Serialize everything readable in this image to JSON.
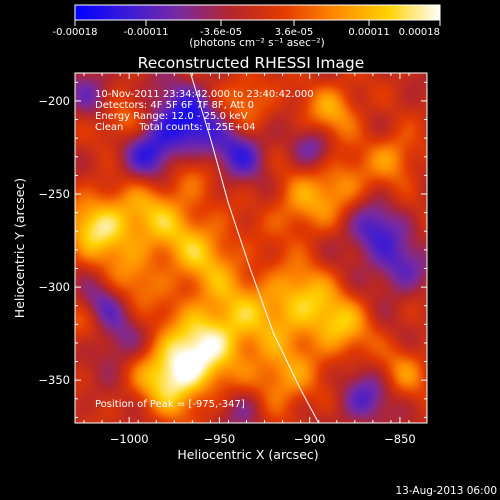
{
  "colorbar": {
    "ticks": [
      {
        "value": -0.00018,
        "label": "-0.00018"
      },
      {
        "value": -0.00011,
        "label": "-0.00011"
      },
      {
        "value": -3.6e-05,
        "label": "-3.6e-05"
      },
      {
        "value": 3.6e-05,
        "label": "3.6e-05"
      },
      {
        "value": 0.00011,
        "label": "0.00011"
      },
      {
        "value": 0.00018,
        "label": "0.00018"
      }
    ],
    "range": [
      -0.00018,
      0.00018
    ],
    "unit_label": "(photons cm⁻² s⁻¹ asec⁻²)",
    "colors": [
      "#0000ff",
      "#3a1ad8",
      "#7a2aa0",
      "#b5262a",
      "#e33a00",
      "#ff8a00",
      "#ffd200",
      "#ffffff"
    ]
  },
  "chart_data": {
    "type": "heatmap",
    "title": "Reconstructed RHESSI Image",
    "xlabel": "Heliocentric X (arcsec)",
    "ylabel": "Heliocentric Y (arcsec)",
    "xlim": [
      -1030,
      -835
    ],
    "ylim": [
      -373,
      -185
    ],
    "x_ticks": [
      -1000,
      -950,
      -900,
      -850
    ],
    "y_ticks": [
      -200,
      -250,
      -300,
      -350
    ],
    "x_tick_labels": [
      "−1000",
      "−950",
      "−900",
      "−850"
    ],
    "y_tick_labels": [
      "−200",
      "−250",
      "−300",
      "−350"
    ],
    "info_lines": [
      "10-Nov-2011 23:34:42.000 to 23:40:42.000",
      "Detectors: 4F 5F 6F 7F 8F, Att 0",
      "Energy Range: 12.0 - 25.0 keV",
      "Clean     Total counts: 1.25E+04"
    ],
    "peak_label": "Position of Peak = [-975,-347]",
    "peak": [
      -975,
      -347
    ],
    "limb_curve": [
      [
        -966,
        -185
      ],
      [
        -955,
        -220
      ],
      [
        -945,
        -255
      ],
      [
        -933,
        -290
      ],
      [
        -920,
        -325
      ],
      [
        -905,
        -355
      ],
      [
        -895,
        -373
      ]
    ],
    "hot_blobs": [
      {
        "x": -975,
        "y": -347,
        "amp": 1.0,
        "r": 14
      },
      {
        "x": -1018,
        "y": -268,
        "amp": 0.75,
        "r": 13
      },
      {
        "x": -988,
        "y": -262,
        "amp": 0.6,
        "r": 16
      },
      {
        "x": -960,
        "y": -282,
        "amp": 0.55,
        "r": 15
      },
      {
        "x": -940,
        "y": -318,
        "amp": 0.55,
        "r": 18
      },
      {
        "x": -958,
        "y": -330,
        "amp": 0.5,
        "r": 14
      },
      {
        "x": -905,
        "y": -307,
        "amp": 0.65,
        "r": 14
      },
      {
        "x": -883,
        "y": -322,
        "amp": 0.6,
        "r": 12
      },
      {
        "x": -915,
        "y": -350,
        "amp": 0.55,
        "r": 13
      },
      {
        "x": -887,
        "y": -205,
        "amp": 0.55,
        "r": 11
      },
      {
        "x": -1003,
        "y": -212,
        "amp": 0.5,
        "r": 9
      },
      {
        "x": -905,
        "y": -257,
        "amp": 0.5,
        "r": 12
      },
      {
        "x": -882,
        "y": -245,
        "amp": 0.5,
        "r": 11
      },
      {
        "x": -853,
        "y": -230,
        "amp": 0.5,
        "r": 10
      },
      {
        "x": -935,
        "y": -200,
        "amp": 0.45,
        "r": 11
      },
      {
        "x": -847,
        "y": -345,
        "amp": 0.4,
        "r": 10
      },
      {
        "x": -1025,
        "y": -320,
        "amp": 0.35,
        "r": 10
      },
      {
        "x": -1000,
        "y": -300,
        "amp": 0.4,
        "r": 12
      },
      {
        "x": -968,
        "y": -238,
        "amp": 0.35,
        "r": 10
      }
    ],
    "cold_blobs": [
      {
        "x": -968,
        "y": -212,
        "amp": -0.8,
        "r": 14
      },
      {
        "x": -990,
        "y": -230,
        "amp": -0.6,
        "r": 12
      },
      {
        "x": -938,
        "y": -228,
        "amp": -0.55,
        "r": 10
      },
      {
        "x": -1015,
        "y": -310,
        "amp": -0.6,
        "r": 10
      },
      {
        "x": -1005,
        "y": -330,
        "amp": -0.4,
        "r": 10
      },
      {
        "x": -865,
        "y": -270,
        "amp": -0.6,
        "r": 11
      },
      {
        "x": -850,
        "y": -290,
        "amp": -0.5,
        "r": 10
      },
      {
        "x": -870,
        "y": -360,
        "amp": -0.5,
        "r": 10
      },
      {
        "x": -898,
        "y": -225,
        "amp": -0.4,
        "r": 8
      },
      {
        "x": -935,
        "y": -365,
        "amp": -0.35,
        "r": 9
      },
      {
        "x": -1022,
        "y": -195,
        "amp": -0.3,
        "r": 10
      }
    ]
  },
  "footer": {
    "date": "13-Aug-2013 06:00"
  }
}
